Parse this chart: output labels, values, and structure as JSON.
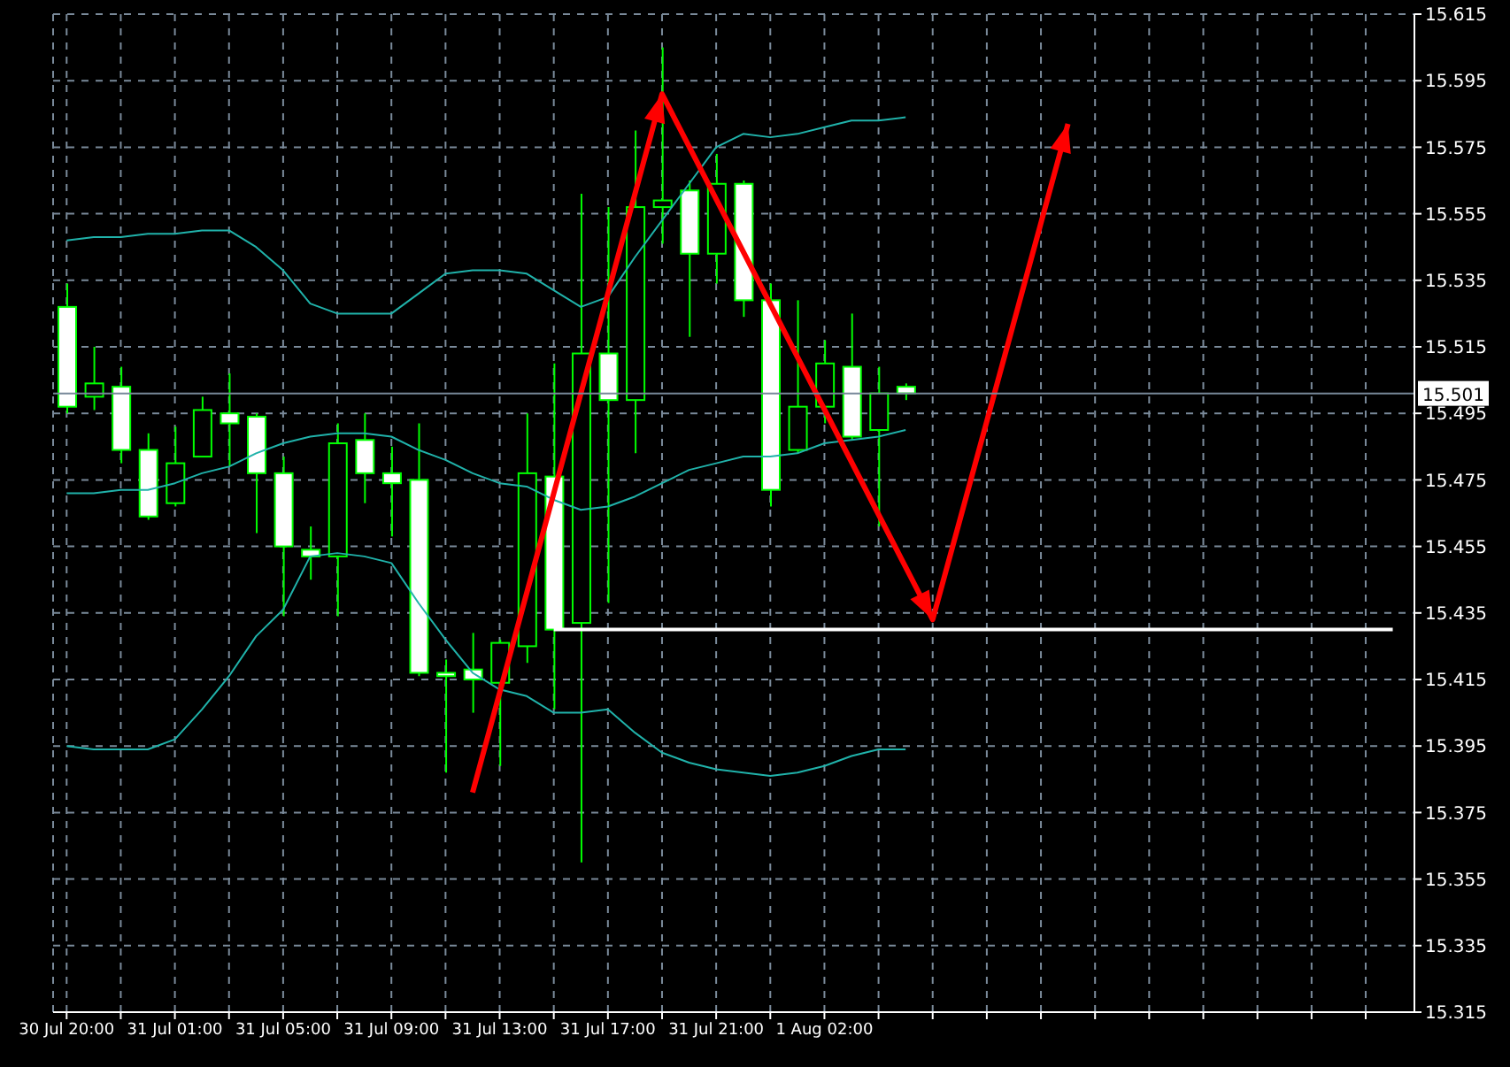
{
  "chart_data": {
    "type": "candlestick",
    "color": "#00ff00",
    "categories": [
      "30 Jul 20:00",
      null,
      null,
      null,
      "31 Jul 01:00",
      null,
      null,
      null,
      "31 Jul 05:00",
      null,
      null,
      null,
      "31 Jul 09:00",
      null,
      null,
      null,
      "31 Jul 13:00",
      null,
      null,
      null,
      "31 Jul 17:00",
      null,
      null,
      null,
      "31 Jul 21:00",
      null,
      null,
      null,
      "1 Aug 02:00",
      null,
      null,
      null,
      null,
      null,
      null,
      null,
      null,
      null,
      null,
      null,
      null,
      null,
      null,
      null,
      null,
      null,
      null,
      null,
      null,
      null
    ],
    "ohlc": [
      [
        15.527,
        15.534,
        15.495,
        15.497
      ],
      [
        15.5,
        15.515,
        15.496,
        15.504
      ],
      [
        15.503,
        15.509,
        15.48,
        15.484
      ],
      [
        15.484,
        15.489,
        15.463,
        15.464
      ],
      [
        15.468,
        15.491,
        15.467,
        15.48
      ],
      [
        15.482,
        15.5,
        15.482,
        15.496
      ],
      [
        15.495,
        15.507,
        15.479,
        15.492
      ],
      [
        15.494,
        15.495,
        15.459,
        15.477
      ],
      [
        15.477,
        15.482,
        15.434,
        15.455
      ],
      [
        15.454,
        15.461,
        15.445,
        15.452
      ],
      [
        15.452,
        15.492,
        15.434,
        15.486
      ],
      [
        15.487,
        15.495,
        15.468,
        15.477
      ],
      [
        15.477,
        15.485,
        15.458,
        15.474
      ],
      [
        15.475,
        15.492,
        15.416,
        15.417
      ],
      [
        15.417,
        15.421,
        15.387,
        15.416
      ],
      [
        15.418,
        15.429,
        15.405,
        15.415
      ],
      [
        15.414,
        15.427,
        15.389,
        15.426
      ],
      [
        15.425,
        15.495,
        15.42,
        15.477
      ],
      [
        15.476,
        15.51,
        15.406,
        15.43
      ],
      [
        15.432,
        15.561,
        15.36,
        15.513
      ],
      [
        15.513,
        15.557,
        15.438,
        15.499
      ],
      [
        15.499,
        15.58,
        15.483,
        15.557
      ],
      [
        15.557,
        15.605,
        15.546,
        15.559
      ],
      [
        15.562,
        15.565,
        15.518,
        15.543
      ],
      [
        15.543,
        15.573,
        15.534,
        15.564
      ],
      [
        15.564,
        15.565,
        15.524,
        15.529
      ],
      [
        15.529,
        15.534,
        15.467,
        15.472
      ],
      [
        15.484,
        15.529,
        15.483,
        15.497
      ],
      [
        15.497,
        15.517,
        15.492,
        15.51
      ],
      [
        15.509,
        15.525,
        15.487,
        15.488
      ],
      [
        15.49,
        15.509,
        15.461,
        15.501
      ],
      [
        15.503,
        15.504,
        15.499,
        15.501
      ],
      null,
      null,
      null,
      null,
      null,
      null,
      null,
      null,
      null,
      null,
      null,
      null,
      null,
      null,
      null,
      null,
      null,
      null
    ],
    "series": [
      {
        "type": "line",
        "color": "#20b2aa",
        "values": [
          15.547,
          15.548,
          15.548,
          15.549,
          15.549,
          15.55,
          15.55,
          15.545,
          15.538,
          15.528,
          15.525,
          15.525,
          15.525,
          15.531,
          15.537,
          15.538,
          15.538,
          15.537,
          15.532,
          15.527,
          15.53,
          15.542,
          15.553,
          15.564,
          15.575,
          15.579,
          15.578,
          15.579,
          15.581,
          15.583,
          15.583,
          15.584,
          null,
          null,
          null,
          null,
          null,
          null,
          null,
          null,
          null,
          null,
          null,
          null,
          null,
          null,
          null,
          null,
          null,
          null
        ]
      },
      {
        "type": "line",
        "color": "#20b2aa",
        "values": [
          15.471,
          15.471,
          15.472,
          15.472,
          15.474,
          15.477,
          15.479,
          15.483,
          15.486,
          15.488,
          15.489,
          15.489,
          15.488,
          15.484,
          15.481,
          15.477,
          15.474,
          15.473,
          15.469,
          15.466,
          15.467,
          15.47,
          15.474,
          15.478,
          15.48,
          15.482,
          15.482,
          15.483,
          15.486,
          15.487,
          15.488,
          15.49,
          null,
          null,
          null,
          null,
          null,
          null,
          null,
          null,
          null,
          null,
          null,
          null,
          null,
          null,
          null,
          null,
          null,
          null
        ]
      },
      {
        "type": "line",
        "color": "#20b2aa",
        "values": [
          15.395,
          15.394,
          15.394,
          15.394,
          15.397,
          15.406,
          15.416,
          15.428,
          15.436,
          15.452,
          15.453,
          15.452,
          15.45,
          15.438,
          15.427,
          15.417,
          15.412,
          15.41,
          15.405,
          15.405,
          15.406,
          15.399,
          15.393,
          15.39,
          15.388,
          15.387,
          15.386,
          15.387,
          15.389,
          15.392,
          15.394,
          15.394,
          null,
          null,
          null,
          null,
          null,
          null,
          null,
          null,
          null,
          null,
          null,
          null,
          null,
          null,
          null,
          null,
          null,
          null
        ]
      },
      {
        "type": "line",
        "color": "#ffffff",
        "values": [
          null,
          null,
          null,
          null,
          null,
          null,
          null,
          null,
          null,
          null,
          null,
          null,
          null,
          null,
          null,
          null,
          null,
          null,
          15.43,
          15.43,
          15.43,
          15.43,
          15.43,
          15.43,
          15.43,
          15.43,
          15.43,
          15.43,
          15.43,
          15.43,
          15.43,
          15.43,
          15.43,
          15.43,
          15.43,
          15.43,
          15.43,
          15.43,
          15.43,
          15.43,
          15.43,
          15.43,
          15.43,
          15.43,
          15.43,
          15.43,
          15.43,
          15.43,
          15.43,
          15.43
        ]
      },
      {
        "type": "line",
        "color": "#ff0000",
        "values": [
          null,
          null,
          null,
          null,
          null,
          null,
          null,
          null,
          null,
          null,
          null,
          null,
          null,
          null,
          null,
          15.381,
          null,
          null,
          null,
          null,
          null,
          null,
          15.591,
          null,
          null,
          null,
          null,
          null,
          null,
          null,
          null,
          null,
          15.433,
          null,
          null,
          null,
          null,
          15.582,
          null,
          null,
          null,
          null,
          null,
          null,
          null,
          null,
          null,
          null,
          null,
          null
        ]
      }
    ],
    "ylim": [
      15.315,
      15.615
    ],
    "yticks": [
      15.315,
      15.335,
      15.355,
      15.375,
      15.395,
      15.415,
      15.435,
      15.455,
      15.475,
      15.495,
      15.515,
      15.535,
      15.555,
      15.575,
      15.595,
      15.615
    ],
    "ref_lines": [
      {
        "axis": "y",
        "value": 15.501,
        "label": "15.501",
        "color": "#778899"
      }
    ],
    "grid": true
  }
}
